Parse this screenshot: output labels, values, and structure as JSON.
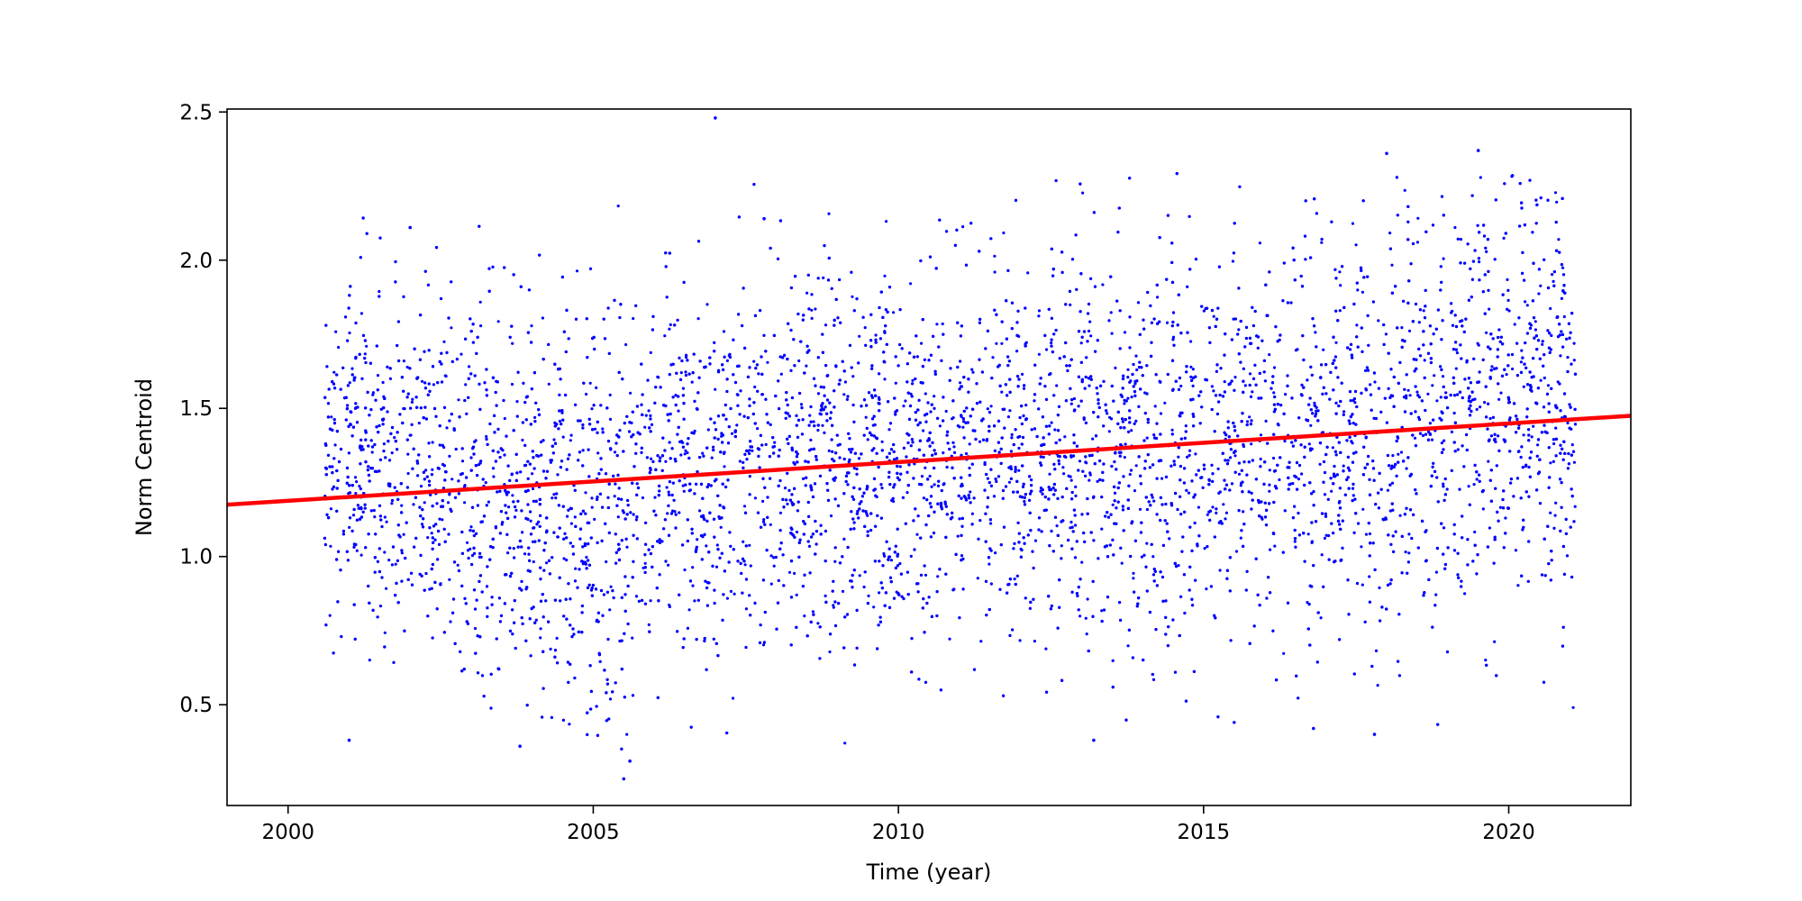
{
  "chart_data": {
    "type": "scatter",
    "title": "",
    "xlabel": "Time (year)",
    "ylabel": "Norm Centroid",
    "xlim": [
      1999.0,
      2022.0
    ],
    "ylim": [
      0.16,
      2.51
    ],
    "xticks": [
      2000,
      2005,
      2010,
      2015,
      2020
    ],
    "yticks": [
      0.5,
      1.0,
      1.5,
      2.0,
      2.5
    ],
    "xtick_labels": [
      "2000",
      "2005",
      "2010",
      "2015",
      "2020"
    ],
    "ytick_labels": [
      "0.5",
      "1.0",
      "1.5",
      "2.0",
      "2.5"
    ],
    "grid": false,
    "legend": "none",
    "series": [
      {
        "kind": "scatter",
        "color": "#0000ff",
        "x_start": 2000.6,
        "x_end": 2021.1,
        "density_profile": [
          [
            2000.6,
            1.35,
            0.3
          ],
          [
            2002.0,
            1.3,
            0.35
          ],
          [
            2003.0,
            1.25,
            0.38
          ],
          [
            2004.0,
            1.15,
            0.38
          ],
          [
            2005.0,
            1.15,
            0.4
          ],
          [
            2006.0,
            1.25,
            0.38
          ],
          [
            2007.0,
            1.3,
            0.36
          ],
          [
            2008.0,
            1.3,
            0.35
          ],
          [
            2009.0,
            1.3,
            0.36
          ],
          [
            2010.0,
            1.3,
            0.37
          ],
          [
            2011.0,
            1.35,
            0.36
          ],
          [
            2012.0,
            1.35,
            0.36
          ],
          [
            2013.0,
            1.35,
            0.38
          ],
          [
            2014.0,
            1.35,
            0.38
          ],
          [
            2015.0,
            1.4,
            0.38
          ],
          [
            2016.0,
            1.4,
            0.38
          ],
          [
            2017.0,
            1.4,
            0.38
          ],
          [
            2018.0,
            1.4,
            0.4
          ],
          [
            2019.0,
            1.5,
            0.4
          ],
          [
            2020.0,
            1.5,
            0.4
          ],
          [
            2021.1,
            1.55,
            0.4
          ]
        ],
        "outliers": [
          [
            2007.0,
            2.48
          ],
          [
            2018.0,
            2.36
          ],
          [
            2019.5,
            2.37
          ],
          [
            2005.5,
            0.25
          ],
          [
            2005.6,
            0.31
          ],
          [
            2001.0,
            0.38
          ],
          [
            2003.8,
            0.36
          ],
          [
            2013.2,
            0.38
          ],
          [
            2016.8,
            0.42
          ],
          [
            2017.8,
            0.4
          ],
          [
            2007.8,
            2.14
          ],
          [
            2002.0,
            2.11
          ]
        ]
      },
      {
        "kind": "line",
        "color": "#ff0000",
        "x": [
          1999.0,
          2022.0
        ],
        "y": [
          1.175,
          1.475
        ]
      }
    ]
  }
}
